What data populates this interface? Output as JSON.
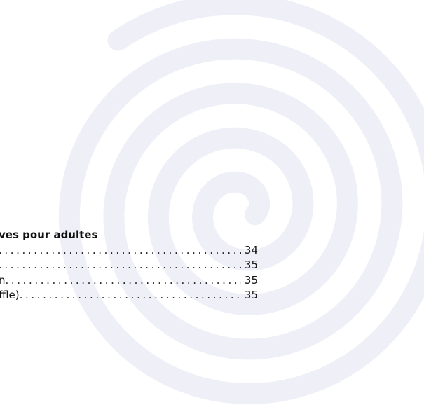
{
  "toc": {
    "heading": "ves pour adultes",
    "entries": [
      {
        "label": "",
        "page": "34"
      },
      {
        "label": "",
        "page": "35"
      },
      {
        "label": "n",
        "page": "35"
      },
      {
        "label": "ffle)",
        "page": "35"
      }
    ]
  },
  "colors": {
    "spiral": "#efeff8",
    "text": "#111111",
    "background": "#ffffff"
  },
  "icons": {
    "background": "spiral-watermark"
  }
}
